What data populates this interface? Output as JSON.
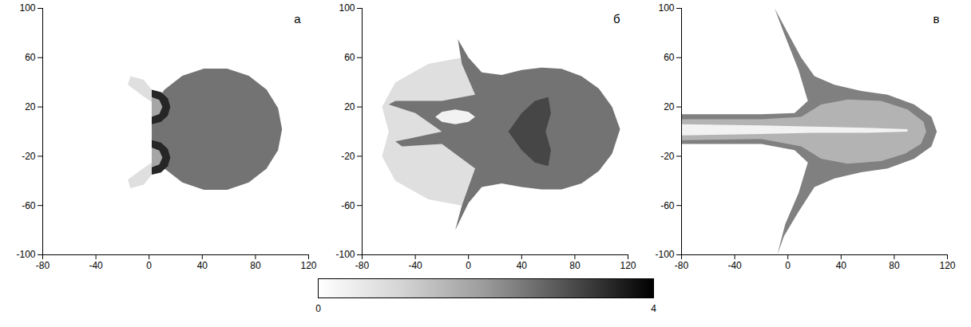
{
  "chart_data": [
    {
      "type": "heatmap",
      "panel": "а",
      "xlim": [
        -80,
        120
      ],
      "xticks": [
        -80,
        -40,
        0,
        40,
        80,
        120
      ],
      "ylim": [
        -100,
        100
      ],
      "yticks": [
        -100,
        -60,
        -20,
        20,
        60,
        100
      ],
      "regions": [
        {
          "value": 2.2,
          "points": [
            [
              100,
              2
            ],
            [
              97,
              19.1
            ],
            [
              88.3,
              34.1
            ],
            [
              75,
              45.3
            ],
            [
              58.7,
              51.2
            ],
            [
              41.3,
              51.2
            ],
            [
              25,
              45.3
            ],
            [
              11.7,
              34.1
            ],
            [
              6.7,
              27
            ],
            [
              2,
              16
            ],
            [
              2,
              -12
            ],
            [
              6.7,
              -23
            ],
            [
              11.7,
              -30.1
            ],
            [
              25,
              -41.3
            ],
            [
              41.3,
              -47.2
            ],
            [
              58.7,
              -47.2
            ],
            [
              75,
              -41.3
            ],
            [
              88.3,
              -30.1
            ],
            [
              97,
              -15.1
            ]
          ]
        },
        {
          "value": 0.5,
          "points": [
            [
              2,
              34
            ],
            [
              2,
              24
            ],
            [
              -6,
              30
            ],
            [
              -16,
              38
            ],
            [
              -14,
              45
            ],
            [
              -4,
              42
            ]
          ]
        },
        {
          "value": 0.5,
          "points": [
            [
              2,
              -35
            ],
            [
              2,
              -25
            ],
            [
              -6,
              -31
            ],
            [
              -16,
              -39
            ],
            [
              -14,
              -46
            ],
            [
              -4,
              -43
            ]
          ]
        },
        {
          "value": 3.4,
          "points": [
            [
              2,
              34
            ],
            [
              9,
              32.1
            ],
            [
              14.1,
              27
            ],
            [
              16,
              20
            ],
            [
              14.1,
              13
            ],
            [
              9,
              7.9
            ],
            [
              2,
              6
            ]
          ]
        },
        {
          "value": 3.4,
          "points": [
            [
              2,
              -7
            ],
            [
              9,
              -8.9
            ],
            [
              14.1,
              -14
            ],
            [
              16,
              -21
            ],
            [
              14.1,
              -28
            ],
            [
              9,
              -33.1
            ],
            [
              2,
              -35
            ]
          ]
        },
        {
          "value": 1.4,
          "points": [
            [
              2,
              28
            ],
            [
              7.7,
              25.7
            ],
            [
              10,
              20
            ],
            [
              7.7,
              14.3
            ],
            [
              2,
              12
            ]
          ]
        },
        {
          "value": 1.4,
          "points": [
            [
              2,
              -13
            ],
            [
              7.7,
              -15.3
            ],
            [
              10,
              -21
            ],
            [
              7.7,
              -26.7
            ],
            [
              2,
              -29
            ]
          ]
        }
      ]
    },
    {
      "type": "heatmap",
      "panel": "б",
      "xlim": [
        -80,
        120
      ],
      "xticks": [
        -80,
        -40,
        0,
        40,
        80,
        120
      ],
      "ylim": [
        -100,
        100
      ],
      "yticks": [
        -100,
        -60,
        -20,
        20,
        60,
        100
      ],
      "regions": [
        {
          "value": 0.5,
          "points": [
            [
              -5,
              60
            ],
            [
              -30,
              55
            ],
            [
              -55,
              40
            ],
            [
              -65,
              20
            ],
            [
              -60,
              0
            ],
            [
              -65,
              -20
            ],
            [
              -55,
              -40
            ],
            [
              -30,
              -55
            ],
            [
              -5,
              -60
            ],
            [
              5,
              -35
            ],
            [
              5,
              35
            ]
          ]
        },
        {
          "value": 2.2,
          "points": [
            [
              -8,
              75
            ],
            [
              0,
              60
            ],
            [
              10,
              48
            ],
            [
              25,
              46
            ],
            [
              40,
              50
            ],
            [
              55,
              52
            ],
            [
              70,
              51
            ],
            [
              85,
              45
            ],
            [
              98,
              35
            ],
            [
              108,
              20
            ],
            [
              114,
              2
            ],
            [
              108,
              -18
            ],
            [
              98,
              -32
            ],
            [
              85,
              -42
            ],
            [
              70,
              -47
            ],
            [
              55,
              -47
            ],
            [
              40,
              -45
            ],
            [
              25,
              -42
            ],
            [
              10,
              -45
            ],
            [
              0,
              -58
            ],
            [
              -10,
              -80
            ],
            [
              -5,
              -60
            ],
            [
              5,
              -30
            ],
            [
              -20,
              -10
            ],
            [
              -50,
              -12
            ],
            [
              -55,
              -8
            ],
            [
              -20,
              0
            ],
            [
              -40,
              15
            ],
            [
              -60,
              22
            ],
            [
              -55,
              25
            ],
            [
              -20,
              25
            ],
            [
              5,
              30
            ],
            [
              -5,
              55
            ]
          ]
        },
        {
          "value": 2.9,
          "points": [
            [
              30,
              0
            ],
            [
              40,
              15
            ],
            [
              50,
              25
            ],
            [
              60,
              28
            ],
            [
              62,
              15
            ],
            [
              58,
              0
            ],
            [
              62,
              -15
            ],
            [
              60,
              -28
            ],
            [
              50,
              -25
            ],
            [
              40,
              -15
            ]
          ]
        },
        {
          "value": 0.2,
          "points": [
            [
              -25,
              12
            ],
            [
              -20,
              16
            ],
            [
              -10,
              18
            ],
            [
              0,
              16
            ],
            [
              5,
              12
            ],
            [
              0,
              8
            ],
            [
              -10,
              6
            ],
            [
              -20,
              8
            ]
          ]
        }
      ]
    },
    {
      "type": "heatmap",
      "panel": "в",
      "xlim": [
        -80,
        120
      ],
      "xticks": [
        -80,
        -40,
        0,
        40,
        80,
        120
      ],
      "ylim": [
        -100,
        100
      ],
      "yticks": [
        -100,
        -60,
        -20,
        20,
        60,
        100
      ],
      "regions": [
        {
          "value": 2.0,
          "points": [
            [
              -10,
              100
            ],
            [
              0,
              80
            ],
            [
              10,
              60
            ],
            [
              20,
              45
            ],
            [
              35,
              38
            ],
            [
              55,
              33
            ],
            [
              75,
              30
            ],
            [
              95,
              22
            ],
            [
              108,
              12
            ],
            [
              112,
              0
            ],
            [
              108,
              -12
            ],
            [
              95,
              -22
            ],
            [
              75,
              -30
            ],
            [
              55,
              -33
            ],
            [
              35,
              -38
            ],
            [
              20,
              -45
            ],
            [
              8,
              -65
            ],
            [
              -3,
              -85
            ],
            [
              -8,
              -100
            ],
            [
              -2,
              -75
            ],
            [
              8,
              -50
            ],
            [
              15,
              -25
            ],
            [
              5,
              -15
            ],
            [
              -20,
              -10
            ],
            [
              -80,
              -10
            ],
            [
              -80,
              14
            ],
            [
              -20,
              14
            ],
            [
              5,
              15
            ],
            [
              15,
              25
            ],
            [
              8,
              50
            ],
            [
              -3,
              80
            ]
          ]
        },
        {
          "value": 1.2,
          "points": [
            [
              -80,
              10
            ],
            [
              -20,
              10
            ],
            [
              10,
              12
            ],
            [
              25,
              22
            ],
            [
              45,
              26
            ],
            [
              70,
              25
            ],
            [
              90,
              18
            ],
            [
              102,
              8
            ],
            [
              104,
              0
            ],
            [
              100,
              -10
            ],
            [
              88,
              -18
            ],
            [
              70,
              -24
            ],
            [
              45,
              -26
            ],
            [
              25,
              -22
            ],
            [
              10,
              -12
            ],
            [
              -20,
              -6
            ],
            [
              -80,
              -7
            ]
          ]
        },
        {
          "value": 0.2,
          "points": [
            [
              -80,
              6
            ],
            [
              -20,
              5
            ],
            [
              20,
              4
            ],
            [
              60,
              3
            ],
            [
              90,
              2
            ],
            [
              90,
              0
            ],
            [
              60,
              -1
            ],
            [
              20,
              -1
            ],
            [
              -20,
              -2
            ],
            [
              -80,
              -3
            ]
          ]
        }
      ]
    }
  ],
  "colorbar": {
    "range": [
      0,
      4
    ],
    "ticks": [
      0,
      4
    ]
  }
}
